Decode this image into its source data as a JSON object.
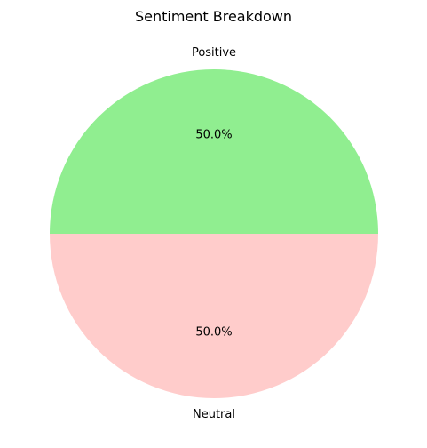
{
  "chart_data": {
    "type": "pie",
    "title": "Sentiment Breakdown",
    "slices": [
      {
        "label": "Positive",
        "value": 50.0,
        "pct_label": "50.0%",
        "color": "#90ee90"
      },
      {
        "label": "Neutral",
        "value": 50.0,
        "pct_label": "50.0%",
        "color": "#ffcccb"
      }
    ],
    "start_angle_deg": 0,
    "direction": "counterclockwise",
    "legend": "none"
  }
}
